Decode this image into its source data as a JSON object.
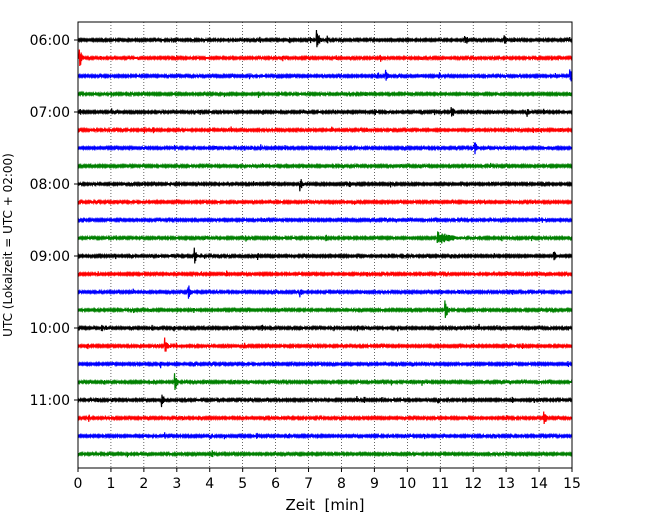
{
  "chart_data": {
    "type": "line",
    "subtype": "helicorder",
    "title": "",
    "xlabel": "Zeit  [min]",
    "ylabel": "UTC (Lokalzeit = UTC + 02:00)",
    "xlim": [
      0,
      15
    ],
    "x_ticks": [
      "0",
      "1",
      "2",
      "3",
      "4",
      "5",
      "6",
      "7",
      "8",
      "9",
      "10",
      "11",
      "12",
      "13",
      "14",
      "15"
    ],
    "y_tick_labels": [
      "06:00",
      "07:00",
      "08:00",
      "09:00",
      "10:00",
      "11:00"
    ],
    "grid": "vertical dotted lines at each minute",
    "trace_colors": [
      "#000000",
      "#ff0000",
      "#0000ff",
      "#008000"
    ],
    "trace_interval_min": 15,
    "trace_start_times": [
      "06:00",
      "06:15",
      "06:30",
      "06:45",
      "07:00",
      "07:15",
      "07:30",
      "07:45",
      "08:00",
      "08:15",
      "08:30",
      "08:45",
      "09:00",
      "09:15",
      "09:30",
      "09:45",
      "10:00",
      "10:15",
      "10:30",
      "10:45",
      "11:00",
      "11:15",
      "11:30",
      "11:45"
    ],
    "events": [
      {
        "trace": 0,
        "minute": 7.3,
        "amplitude": 1.0
      },
      {
        "trace": 0,
        "minute": 13.0,
        "amplitude": 0.5
      },
      {
        "trace": 0,
        "minute": 11.8,
        "amplitude": 0.3
      },
      {
        "trace": 1,
        "minute": 0.1,
        "amplitude": 0.9
      },
      {
        "trace": 2,
        "minute": 9.4,
        "amplitude": 0.7
      },
      {
        "trace": 2,
        "minute": 15.0,
        "amplitude": 0.6
      },
      {
        "trace": 4,
        "minute": 11.4,
        "amplitude": 0.6
      },
      {
        "trace": 4,
        "minute": 13.7,
        "amplitude": 0.4
      },
      {
        "trace": 6,
        "minute": 12.1,
        "amplitude": 0.6
      },
      {
        "trace": 6,
        "minute": 5.3,
        "amplitude": 0.3
      },
      {
        "trace": 8,
        "minute": 6.8,
        "amplitude": 0.6
      },
      {
        "trace": 8,
        "minute": 8.3,
        "amplitude": 0.4
      },
      {
        "trace": 11,
        "minute": 11.3,
        "amplitude": 0.5,
        "width": 1.6
      },
      {
        "trace": 12,
        "minute": 3.6,
        "amplitude": 0.6
      },
      {
        "trace": 12,
        "minute": 14.5,
        "amplitude": 0.5
      },
      {
        "trace": 14,
        "minute": 3.4,
        "amplitude": 0.8
      },
      {
        "trace": 14,
        "minute": 6.8,
        "amplitude": 0.4
      },
      {
        "trace": 15,
        "minute": 11.2,
        "amplitude": 0.9
      },
      {
        "trace": 17,
        "minute": 2.7,
        "amplitude": 0.7
      },
      {
        "trace": 19,
        "minute": 3.0,
        "amplitude": 0.8
      },
      {
        "trace": 20,
        "minute": 2.6,
        "amplitude": 0.7
      },
      {
        "trace": 20,
        "minute": 11.0,
        "amplitude": 0.3
      },
      {
        "trace": 21,
        "minute": 14.2,
        "amplitude": 0.7
      },
      {
        "trace": 22,
        "minute": 4.1,
        "amplitude": 0.3
      }
    ]
  }
}
